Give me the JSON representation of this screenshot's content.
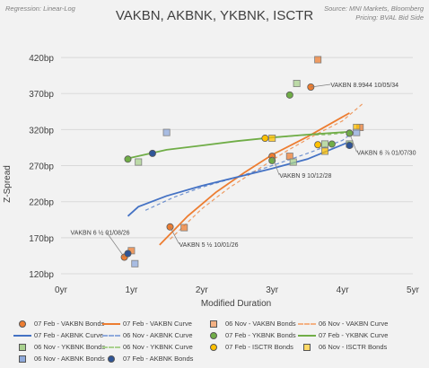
{
  "header": {
    "regression": "Regression: Linear-Log",
    "title": "VAKBN, AKBNK, YKBNK, ISCTR",
    "source": "Source: MNI Markets, Bloomberg",
    "pricing": "Pricing: BVAL Bid Side"
  },
  "chart_data": {
    "type": "scatter",
    "title": "VAKBN, AKBNK, YKBNK, ISCTR",
    "xlabel": "Modified Duration",
    "ylabel": "Z-Spread",
    "xlim": [
      0,
      5
    ],
    "ylim": [
      120,
      445
    ],
    "x_ticks": [
      0,
      1,
      2,
      3,
      4,
      5
    ],
    "x_tick_labels": [
      "0yr",
      "1yr",
      "2yr",
      "3yr",
      "4yr",
      "5yr"
    ],
    "y_ticks": [
      120,
      170,
      220,
      270,
      320,
      370,
      420
    ],
    "y_tick_labels": [
      "120bp",
      "170bp",
      "220bp",
      "270bp",
      "320bp",
      "370bp",
      "420bp"
    ],
    "grid": "horizontal",
    "legend_position": "bottom",
    "series": [
      {
        "name": "07 Feb - VAKBN Bonds",
        "kind": "points",
        "marker": "circle",
        "color": "#ed7d31",
        "points": [
          [
            0.9,
            143
          ],
          [
            1.55,
            185
          ],
          [
            3.0,
            283
          ],
          [
            3.55,
            379
          ],
          [
            4.1,
            315
          ]
        ]
      },
      {
        "name": "07 Feb - VAKBN Curve",
        "kind": "curve",
        "color": "#ed7d31",
        "dash": false,
        "points": [
          [
            1.4,
            160
          ],
          [
            1.8,
            200
          ],
          [
            2.2,
            233
          ],
          [
            2.6,
            260
          ],
          [
            3.0,
            285
          ],
          [
            3.5,
            310
          ],
          [
            4.1,
            343
          ]
        ]
      },
      {
        "name": "06 Nov - VAKBN Bonds",
        "kind": "points",
        "marker": "square",
        "color": "#ed7d31",
        "points": [
          [
            1.0,
            152
          ],
          [
            1.75,
            184
          ],
          [
            3.25,
            283
          ],
          [
            3.65,
            417
          ],
          [
            4.25,
            323
          ]
        ]
      },
      {
        "name": "06 Nov - VAKBN Curve",
        "kind": "curve",
        "color": "#ed7d31",
        "dash": true,
        "points": [
          [
            1.55,
            168
          ],
          [
            2.0,
            210
          ],
          [
            2.4,
            240
          ],
          [
            2.8,
            265
          ],
          [
            3.2,
            290
          ],
          [
            3.6,
            312
          ],
          [
            4.0,
            332
          ],
          [
            4.3,
            357
          ]
        ]
      },
      {
        "name": "07 Feb - AKBNK Curve",
        "kind": "curve",
        "color": "#4472c4",
        "dash": false,
        "points": [
          [
            0.95,
            200
          ],
          [
            1.1,
            213
          ],
          [
            1.5,
            228
          ],
          [
            2.0,
            242
          ],
          [
            2.5,
            254
          ],
          [
            3.0,
            266
          ],
          [
            3.5,
            279
          ],
          [
            4.1,
            303
          ]
        ]
      },
      {
        "name": "06 Nov - YKBNK Bonds",
        "kind": "points",
        "marker": "square",
        "color": "#a9d18e",
        "points": [
          [
            1.1,
            275
          ],
          [
            3.3,
            275
          ],
          [
            3.35,
            384
          ],
          [
            3.75,
            300
          ],
          [
            4.1,
            300
          ]
        ]
      },
      {
        "name": "06 Nov - YKBNK Curve",
        "kind": "curve",
        "color": "#70ad47",
        "dash": true,
        "points": [
          [
            2.9,
            308
          ],
          [
            3.4,
            312
          ],
          [
            3.8,
            313
          ],
          [
            4.1,
            316
          ]
        ]
      },
      {
        "name": "07 Feb - ISCTR Bonds",
        "kind": "points",
        "marker": "circle",
        "color": "#ffc000",
        "points": [
          [
            2.9,
            308
          ],
          [
            3.65,
            299
          ]
        ]
      },
      {
        "name": "06 Nov - ISCTR Bonds",
        "kind": "points",
        "marker": "square",
        "color": "#ffc000",
        "points": [
          [
            3.0,
            308
          ],
          [
            3.75,
            290
          ],
          [
            4.2,
            323
          ]
        ]
      },
      {
        "name": "06 Nov - AKBNK Bonds",
        "kind": "points",
        "marker": "square",
        "color": "#8faadc",
        "points": [
          [
            1.05,
            134
          ],
          [
            1.5,
            316
          ],
          [
            4.2,
            316
          ]
        ]
      },
      {
        "name": "07 Feb - AKBNK Bonds",
        "kind": "points",
        "marker": "circle",
        "color": "#2f5597",
        "points": [
          [
            0.95,
            148
          ],
          [
            1.3,
            287
          ],
          [
            4.1,
            298
          ]
        ]
      },
      {
        "name": "07 Feb - YKBNK Bonds",
        "kind": "points",
        "marker": "circle",
        "color": "#70ad47",
        "points": [
          [
            0.95,
            279
          ],
          [
            3.0,
            277
          ],
          [
            3.25,
            368
          ],
          [
            3.85,
            300
          ],
          [
            4.1,
            315
          ]
        ]
      },
      {
        "name": "07 Feb - YKBNK Curve",
        "kind": "curve",
        "color": "#70ad47",
        "dash": false,
        "points": [
          [
            0.95,
            280
          ],
          [
            1.5,
            292
          ],
          [
            2.0,
            298
          ],
          [
            2.5,
            304
          ],
          [
            3.0,
            309
          ],
          [
            3.5,
            313
          ],
          [
            4.1,
            317
          ]
        ]
      },
      {
        "name": "06 Nov - AKBNK Curve",
        "kind": "curve",
        "color": "#4472c4",
        "dash": true,
        "points": [
          [
            1.2,
            208
          ],
          [
            1.6,
            226
          ],
          [
            2.0,
            240
          ],
          [
            2.5,
            254
          ],
          [
            3.0,
            270
          ],
          [
            3.5,
            287
          ],
          [
            4.0,
            305
          ],
          [
            4.2,
            320
          ]
        ]
      }
    ],
    "annotations": [
      {
        "text": "VAKBN 8.9944 10/05/34",
        "at": [
          3.55,
          379
        ]
      },
      {
        "text": "VAKBN 6 ⅞ 01/07/30",
        "at": [
          4.1,
          315
        ]
      },
      {
        "text": "VAKBN 9 10/12/28",
        "at": [
          3.0,
          283
        ]
      },
      {
        "text": "VAKBN 6 ½ 01/08/26",
        "at": [
          0.9,
          143
        ]
      },
      {
        "text": "VAKBN 5 ½ 10/01/26",
        "at": [
          1.55,
          185
        ]
      }
    ]
  },
  "legend": [
    {
      "label": "07 Feb - VAKBN Bonds",
      "kind": "circle",
      "color": "#ed7d31"
    },
    {
      "label": "07 Feb - VAKBN Curve",
      "kind": "line",
      "color": "#ed7d31"
    },
    {
      "label": "06 Nov - VAKBN Bonds",
      "kind": "square",
      "color": "#f4b183"
    },
    {
      "label": "06 Nov - VAKBN Curve",
      "kind": "dash",
      "color": "#f4b183"
    },
    {
      "label": "07 Feb - AKBNK Curve",
      "kind": "line",
      "color": "#4472c4"
    },
    {
      "label": "06 Nov - AKBNK Curve",
      "kind": "dash",
      "color": "#8faadc"
    },
    {
      "label": "07 Feb - YKBNK Bonds",
      "kind": "circle",
      "color": "#70ad47"
    },
    {
      "label": "07 Feb - YKBNK Curve",
      "kind": "line",
      "color": "#70ad47"
    },
    {
      "label": "06 Nov - YKBNK Bonds",
      "kind": "square",
      "color": "#a9d18e"
    },
    {
      "label": "06 Nov - YKBNK Curve",
      "kind": "dash",
      "color": "#a9d18e"
    },
    {
      "label": "07 Feb - ISCTR Bonds",
      "kind": "circle",
      "color": "#ffc000"
    },
    {
      "label": "06 Nov - ISCTR Bonds",
      "kind": "square",
      "color": "#ffd966"
    },
    {
      "label": "06 Nov - AKBNK Bonds",
      "kind": "square",
      "color": "#8faadc"
    },
    {
      "label": "07 Feb - AKBNK Bonds",
      "kind": "circle",
      "color": "#2f5597"
    }
  ]
}
